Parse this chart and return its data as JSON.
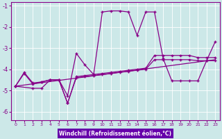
{
  "xlabel": "Windchill (Refroidissement éolien,°C)",
  "background_color": "#cce8e8",
  "line_color": "#880088",
  "xlabel_bg": "#6600aa",
  "xlabel_fg": "#ffffff",
  "xlim": [
    -0.5,
    23.5
  ],
  "ylim": [
    -6.4,
    -0.85
  ],
  "xticks": [
    0,
    1,
    2,
    3,
    4,
    5,
    6,
    7,
    8,
    9,
    10,
    11,
    12,
    13,
    14,
    15,
    16,
    17,
    18,
    19,
    20,
    21,
    22,
    23
  ],
  "yticks": [
    -6,
    -5,
    -4,
    -3,
    -2,
    -1
  ],
  "line1_x": [
    0,
    1,
    2,
    3,
    4,
    5,
    6,
    7,
    8,
    9,
    10,
    11,
    12,
    13,
    14,
    15,
    16,
    17,
    18,
    19,
    20,
    21,
    22,
    23
  ],
  "line1_y": [
    -4.8,
    -4.2,
    -4.7,
    -4.6,
    -4.5,
    -4.5,
    -5.6,
    -4.4,
    -4.35,
    -4.3,
    -4.25,
    -4.2,
    -4.15,
    -4.1,
    -4.05,
    -4.0,
    -3.55,
    -3.55,
    -3.55,
    -3.55,
    -3.55,
    -3.6,
    -3.6,
    -3.6
  ],
  "line2_x": [
    0,
    1,
    2,
    3,
    4,
    5,
    6,
    7,
    8,
    9,
    10,
    11,
    12,
    13,
    14,
    15,
    16,
    17,
    18,
    19,
    20,
    21,
    22,
    23
  ],
  "line2_y": [
    -4.8,
    -4.15,
    -4.65,
    -4.6,
    -4.5,
    -4.5,
    -5.6,
    -4.35,
    -4.3,
    -4.25,
    -4.2,
    -4.15,
    -4.1,
    -4.05,
    -4.0,
    -3.95,
    -3.35,
    -3.35,
    -3.35,
    -3.35,
    -3.35,
    -3.45,
    -3.45,
    -3.45
  ],
  "line3_x": [
    0,
    2,
    3,
    4,
    5,
    6,
    7,
    8,
    9,
    10,
    11,
    12,
    13,
    14,
    15,
    16,
    17,
    18,
    19,
    20,
    21,
    22,
    23
  ],
  "line3_y": [
    -4.8,
    -4.9,
    -4.9,
    -4.5,
    -4.5,
    -5.25,
    -3.25,
    -3.8,
    -4.25,
    -1.3,
    -1.25,
    -1.25,
    -1.3,
    -2.4,
    -1.3,
    -1.3,
    -3.5,
    -4.55,
    -4.55,
    -4.55,
    -4.55,
    -3.6,
    -2.7
  ],
  "line4_x": [
    0,
    23
  ],
  "line4_y": [
    -4.8,
    -3.55
  ]
}
